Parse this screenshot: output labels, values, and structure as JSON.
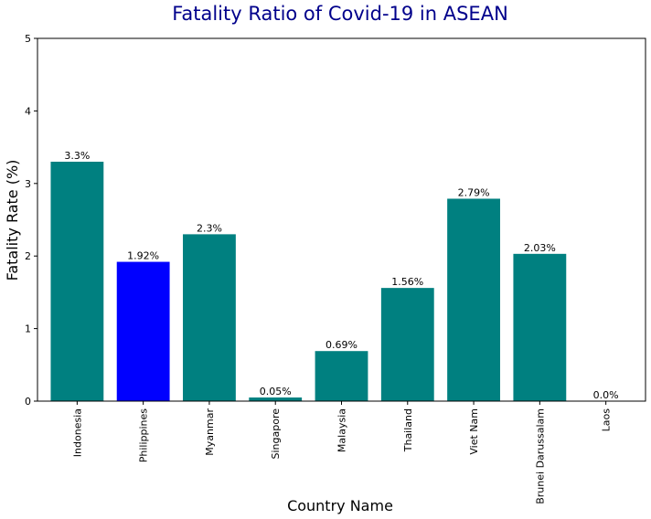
{
  "chart_data": {
    "type": "bar",
    "title": "Fatality Ratio of Covid-19 in ASEAN",
    "xlabel": "Country Name",
    "ylabel": "Fatality Rate (%)",
    "ylim": [
      0,
      5
    ],
    "yticks": [
      "0",
      "1",
      "2",
      "3",
      "4",
      "5"
    ],
    "categories": [
      "Indonesia",
      "Philippines",
      "Myanmar",
      "Singapore",
      "Malaysia",
      "Thailand",
      "Viet Nam",
      "Brunei Darussalam",
      "Laos"
    ],
    "values": [
      3.3,
      1.92,
      2.3,
      0.05,
      0.69,
      1.56,
      2.79,
      2.03,
      0.0
    ],
    "data_labels": [
      "3.3%",
      "1.92%",
      "2.3%",
      "0.05%",
      "0.69%",
      "1.56%",
      "2.79%",
      "2.03%",
      "0.0%"
    ],
    "colors": [
      "#008080",
      "#0000ff",
      "#008080",
      "#008080",
      "#008080",
      "#008080",
      "#008080",
      "#008080",
      "#008080"
    ],
    "grid": false,
    "legend": "none"
  }
}
